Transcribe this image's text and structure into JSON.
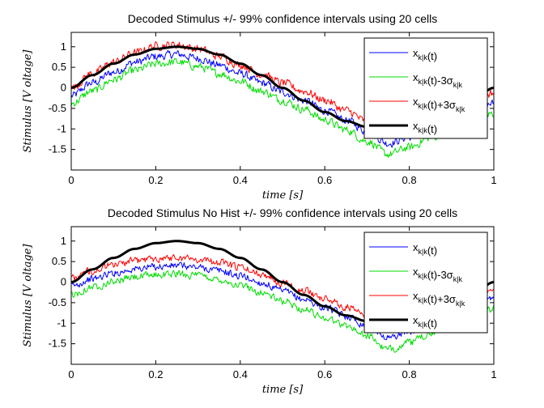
{
  "chart_data": [
    {
      "type": "line",
      "title": "Decoded Stimulus +/- 99% confidence intervals using 20 cells",
      "xlabel": "time [s]",
      "ylabel": "Stimulus [V oltage]",
      "xlim": [
        0,
        1
      ],
      "ylim": [
        -2,
        1.35
      ],
      "xticks": [
        "0",
        "0.2",
        "0.4",
        "0.6",
        "0.8",
        "1"
      ],
      "yticks": [
        "-1.5",
        "-1",
        "-0.5",
        "0",
        "0.5",
        "1"
      ],
      "legend_position": "top-right",
      "grid": false,
      "x": [
        0,
        0.05,
        0.1,
        0.15,
        0.2,
        0.25,
        0.3,
        0.35,
        0.4,
        0.45,
        0.5,
        0.55,
        0.6,
        0.65,
        0.7,
        0.75,
        0.8,
        0.85,
        0.9,
        0.95,
        1.0
      ],
      "series": [
        {
          "name": "x_{k|k}(t)",
          "color": "#0000ff",
          "width": 1,
          "noise": 0.09,
          "values": [
            -0.2,
            0.12,
            0.38,
            0.62,
            0.76,
            0.82,
            0.72,
            0.55,
            0.35,
            0.12,
            -0.1,
            -0.3,
            -0.55,
            -0.78,
            -1.05,
            -1.35,
            -1.2,
            -1.0,
            -0.82,
            -0.55,
            -0.38
          ]
        },
        {
          "name": "x_{k|k}(t)-3σ_{k|k}",
          "color": "#00dd00",
          "width": 1,
          "noise": 0.09,
          "values": [
            -0.38,
            -0.08,
            0.2,
            0.42,
            0.58,
            0.63,
            0.52,
            0.35,
            0.16,
            -0.08,
            -0.3,
            -0.52,
            -0.78,
            -1.02,
            -1.3,
            -1.62,
            -1.45,
            -1.22,
            -1.05,
            -0.78,
            -0.62
          ]
        },
        {
          "name": "x_{k|k}(t)+3σ_{k|k}",
          "color": "#ff0000",
          "width": 1,
          "noise": 0.09,
          "values": [
            0.0,
            0.35,
            0.62,
            0.85,
            1.02,
            1.05,
            0.95,
            0.77,
            0.56,
            0.33,
            0.12,
            -0.08,
            -0.3,
            -0.55,
            -0.82,
            -1.1,
            -0.96,
            -0.78,
            -0.58,
            -0.32,
            -0.12
          ]
        },
        {
          "name": "x_{k|k}(t)",
          "color": "#000000",
          "width": 3,
          "noise": 0,
          "values": [
            0.0,
            0.31,
            0.59,
            0.81,
            0.95,
            1.0,
            0.95,
            0.81,
            0.59,
            0.31,
            0.0,
            -0.31,
            -0.59,
            -0.81,
            -0.95,
            -1.0,
            -0.95,
            -0.81,
            -0.59,
            -0.31,
            0.0
          ]
        }
      ]
    },
    {
      "type": "line",
      "title": "Decoded Stimulus No Hist +/- 99% confidence intervals using 20 cells",
      "xlabel": "time [s]",
      "ylabel": "Stimulus [V oltage]",
      "xlim": [
        0,
        1
      ],
      "ylim": [
        -2,
        1.35
      ],
      "xticks": [
        "0",
        "0.2",
        "0.4",
        "0.6",
        "0.8",
        "1"
      ],
      "yticks": [
        "-1.5",
        "-1",
        "-0.5",
        "0",
        "0.5",
        "1"
      ],
      "legend_position": "top-right",
      "grid": false,
      "x": [
        0,
        0.05,
        0.1,
        0.15,
        0.2,
        0.25,
        0.3,
        0.35,
        0.4,
        0.45,
        0.5,
        0.55,
        0.6,
        0.65,
        0.7,
        0.75,
        0.8,
        0.85,
        0.9,
        0.95,
        1.0
      ],
      "series": [
        {
          "name": "x_{k|k}(t)",
          "color": "#0000ff",
          "width": 1,
          "noise": 0.08,
          "values": [
            -0.1,
            0.08,
            0.22,
            0.32,
            0.38,
            0.4,
            0.36,
            0.28,
            0.15,
            -0.02,
            -0.22,
            -0.42,
            -0.62,
            -0.82,
            -1.05,
            -1.35,
            -1.2,
            -1.0,
            -0.8,
            -0.6,
            -0.42
          ]
        },
        {
          "name": "x_{k|k}(t)-3σ_{k|k}",
          "color": "#00dd00",
          "width": 1,
          "noise": 0.08,
          "values": [
            -0.3,
            -0.12,
            0.02,
            0.12,
            0.18,
            0.2,
            0.16,
            0.06,
            -0.08,
            -0.25,
            -0.46,
            -0.66,
            -0.86,
            -1.06,
            -1.3,
            -1.65,
            -1.48,
            -1.26,
            -1.06,
            -0.84,
            -0.66
          ]
        },
        {
          "name": "x_{k|k}(t)+3σ_{k|k}",
          "color": "#ff0000",
          "width": 1,
          "noise": 0.08,
          "values": [
            0.08,
            0.28,
            0.42,
            0.52,
            0.58,
            0.6,
            0.56,
            0.48,
            0.36,
            0.2,
            0.0,
            -0.2,
            -0.4,
            -0.6,
            -0.82,
            -1.1,
            -0.95,
            -0.76,
            -0.55,
            -0.35,
            -0.18
          ]
        },
        {
          "name": "x_{k|k}(t)",
          "color": "#000000",
          "width": 3,
          "noise": 0,
          "values": [
            0.0,
            0.31,
            0.59,
            0.81,
            0.95,
            1.0,
            0.95,
            0.81,
            0.59,
            0.31,
            0.0,
            -0.31,
            -0.59,
            -0.81,
            -0.95,
            -1.0,
            -0.95,
            -0.81,
            -0.59,
            -0.31,
            0.0
          ]
        }
      ]
    }
  ]
}
